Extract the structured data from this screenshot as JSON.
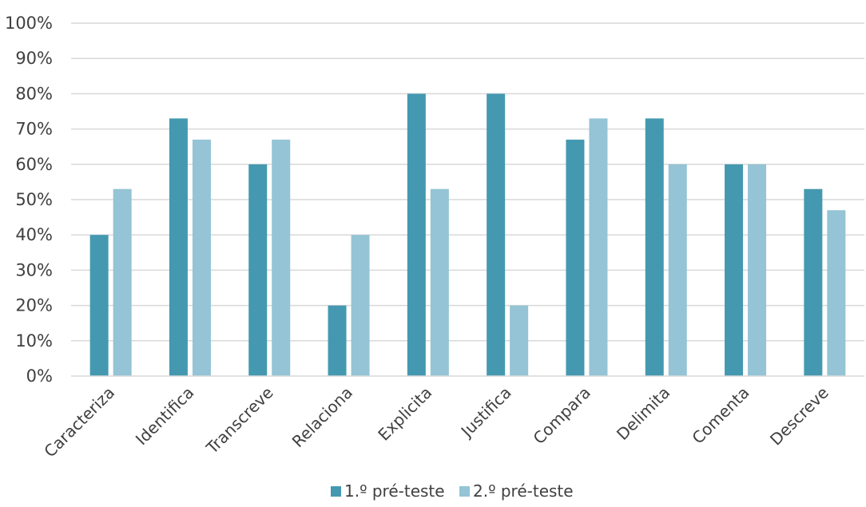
{
  "chart_data": {
    "type": "bar",
    "title": "",
    "xlabel": "",
    "ylabel": "",
    "categories": [
      "Caracteriza",
      "Identifica",
      "Transcreve",
      "Relaciona",
      "Explicita",
      "Justifica",
      "Compara",
      "Delimita",
      "Comenta",
      "Descreve"
    ],
    "series": [
      {
        "name": "1.º pré-teste",
        "color": "#4499b0",
        "values": [
          40,
          73,
          60,
          20,
          80,
          80,
          67,
          73,
          60,
          53
        ]
      },
      {
        "name": "2.º pré-teste",
        "color": "#94c4d5",
        "values": [
          53,
          67,
          67,
          40,
          53,
          20,
          73,
          60,
          60,
          47
        ]
      }
    ],
    "ylim": [
      0,
      100
    ],
    "yticks": [
      "0%",
      "10%",
      "20%",
      "30%",
      "40%",
      "50%",
      "60%",
      "70%",
      "80%",
      "90%",
      "100%"
    ],
    "grid": true,
    "legend_position": "bottom"
  }
}
